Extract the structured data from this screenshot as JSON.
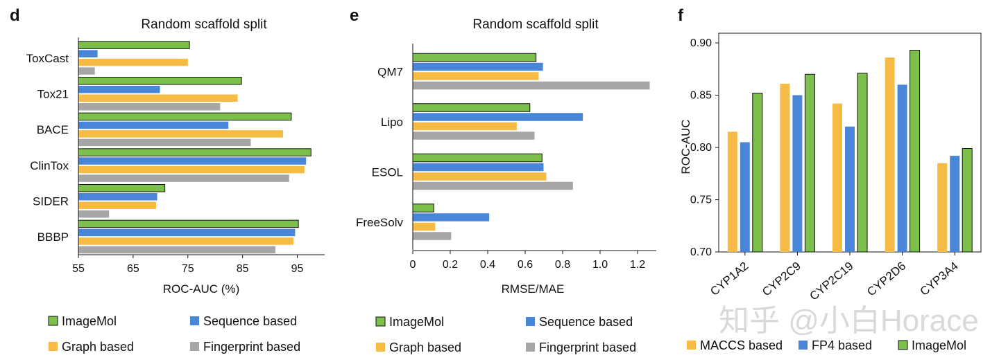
{
  "colors": {
    "imagemol": "#7cbf4a",
    "sequence": "#4a86d8",
    "graph": "#f5bb45",
    "fingerprint": "#a6a6a6",
    "maccs": "#f5bb45",
    "fp4": "#4a86d8",
    "edge": "#111111"
  },
  "panel_d": {
    "letter": "d",
    "legend": [
      "ImageMol",
      "Sequence based",
      "Graph based",
      "Fingerprint based"
    ]
  },
  "panel_e": {
    "letter": "e",
    "legend": [
      "ImageMol",
      "Sequence based",
      "Graph based",
      "Fingerprint based"
    ]
  },
  "panel_f": {
    "letter": "f",
    "legend": [
      "MACCS based",
      "FP4 based",
      "ImageMol"
    ]
  },
  "watermark": "知乎 @小白Horace",
  "chart_data": [
    {
      "type": "bar",
      "orientation": "horizontal",
      "title": "Random scaffold split",
      "xlabel": "ROC-AUC (%)",
      "ylabel": "",
      "xlim": [
        55,
        100
      ],
      "xticks": [
        55,
        65,
        75,
        85,
        95
      ],
      "categories": [
        "ToxCast",
        "Tox21",
        "BACE",
        "ClinTox",
        "SIDER",
        "BBBP"
      ],
      "series": [
        {
          "name": "ImageMol",
          "values": [
            75.3,
            84.8,
            93.9,
            97.5,
            70.8,
            95.2
          ]
        },
        {
          "name": "Sequence based",
          "values": [
            58.5,
            69.9,
            82.4,
            96.6,
            69.4,
            94.6
          ]
        },
        {
          "name": "Graph based",
          "values": [
            75.0,
            84.1,
            92.4,
            96.3,
            69.2,
            94.3
          ]
        },
        {
          "name": "Fingerprint based",
          "values": [
            58.0,
            80.9,
            86.5,
            93.5,
            60.6,
            91.0
          ]
        }
      ]
    },
    {
      "type": "bar",
      "orientation": "horizontal",
      "title": "Random scaffold split",
      "xlabel": "RMSE/MAE",
      "ylabel": "",
      "xlim": [
        0,
        1.3
      ],
      "xticks": [
        0,
        0.2,
        0.4,
        0.6,
        0.8,
        1.0,
        1.2
      ],
      "categories": [
        "QM7",
        "Lipo",
        "ESOL",
        "FreeSolv"
      ],
      "series": [
        {
          "name": "ImageMol",
          "values": [
            0.658,
            0.625,
            0.69,
            0.112
          ]
        },
        {
          "name": "Sequence based",
          "values": [
            0.695,
            0.908,
            0.698,
            0.408
          ]
        },
        {
          "name": "Graph based",
          "values": [
            0.672,
            0.555,
            0.713,
            0.12
          ]
        },
        {
          "name": "Fingerprint based",
          "values": [
            1.265,
            0.65,
            0.855,
            0.205
          ]
        }
      ]
    },
    {
      "type": "bar",
      "orientation": "vertical",
      "title": "",
      "xlabel": "",
      "ylabel": "ROC-AUC",
      "ylim": [
        0.7,
        0.9
      ],
      "yticks": [
        0.7,
        0.75,
        0.8,
        0.85,
        0.9
      ],
      "categories": [
        "CYP1A2",
        "CYP2C9",
        "CYP2C19",
        "CYP2D6",
        "CYP3A4"
      ],
      "series": [
        {
          "name": "MACCS based",
          "values": [
            0.815,
            0.861,
            0.842,
            0.886,
            0.785
          ]
        },
        {
          "name": "FP4 based",
          "values": [
            0.805,
            0.85,
            0.82,
            0.86,
            0.792
          ]
        },
        {
          "name": "ImageMol",
          "values": [
            0.852,
            0.87,
            0.871,
            0.893,
            0.799
          ]
        }
      ]
    }
  ]
}
